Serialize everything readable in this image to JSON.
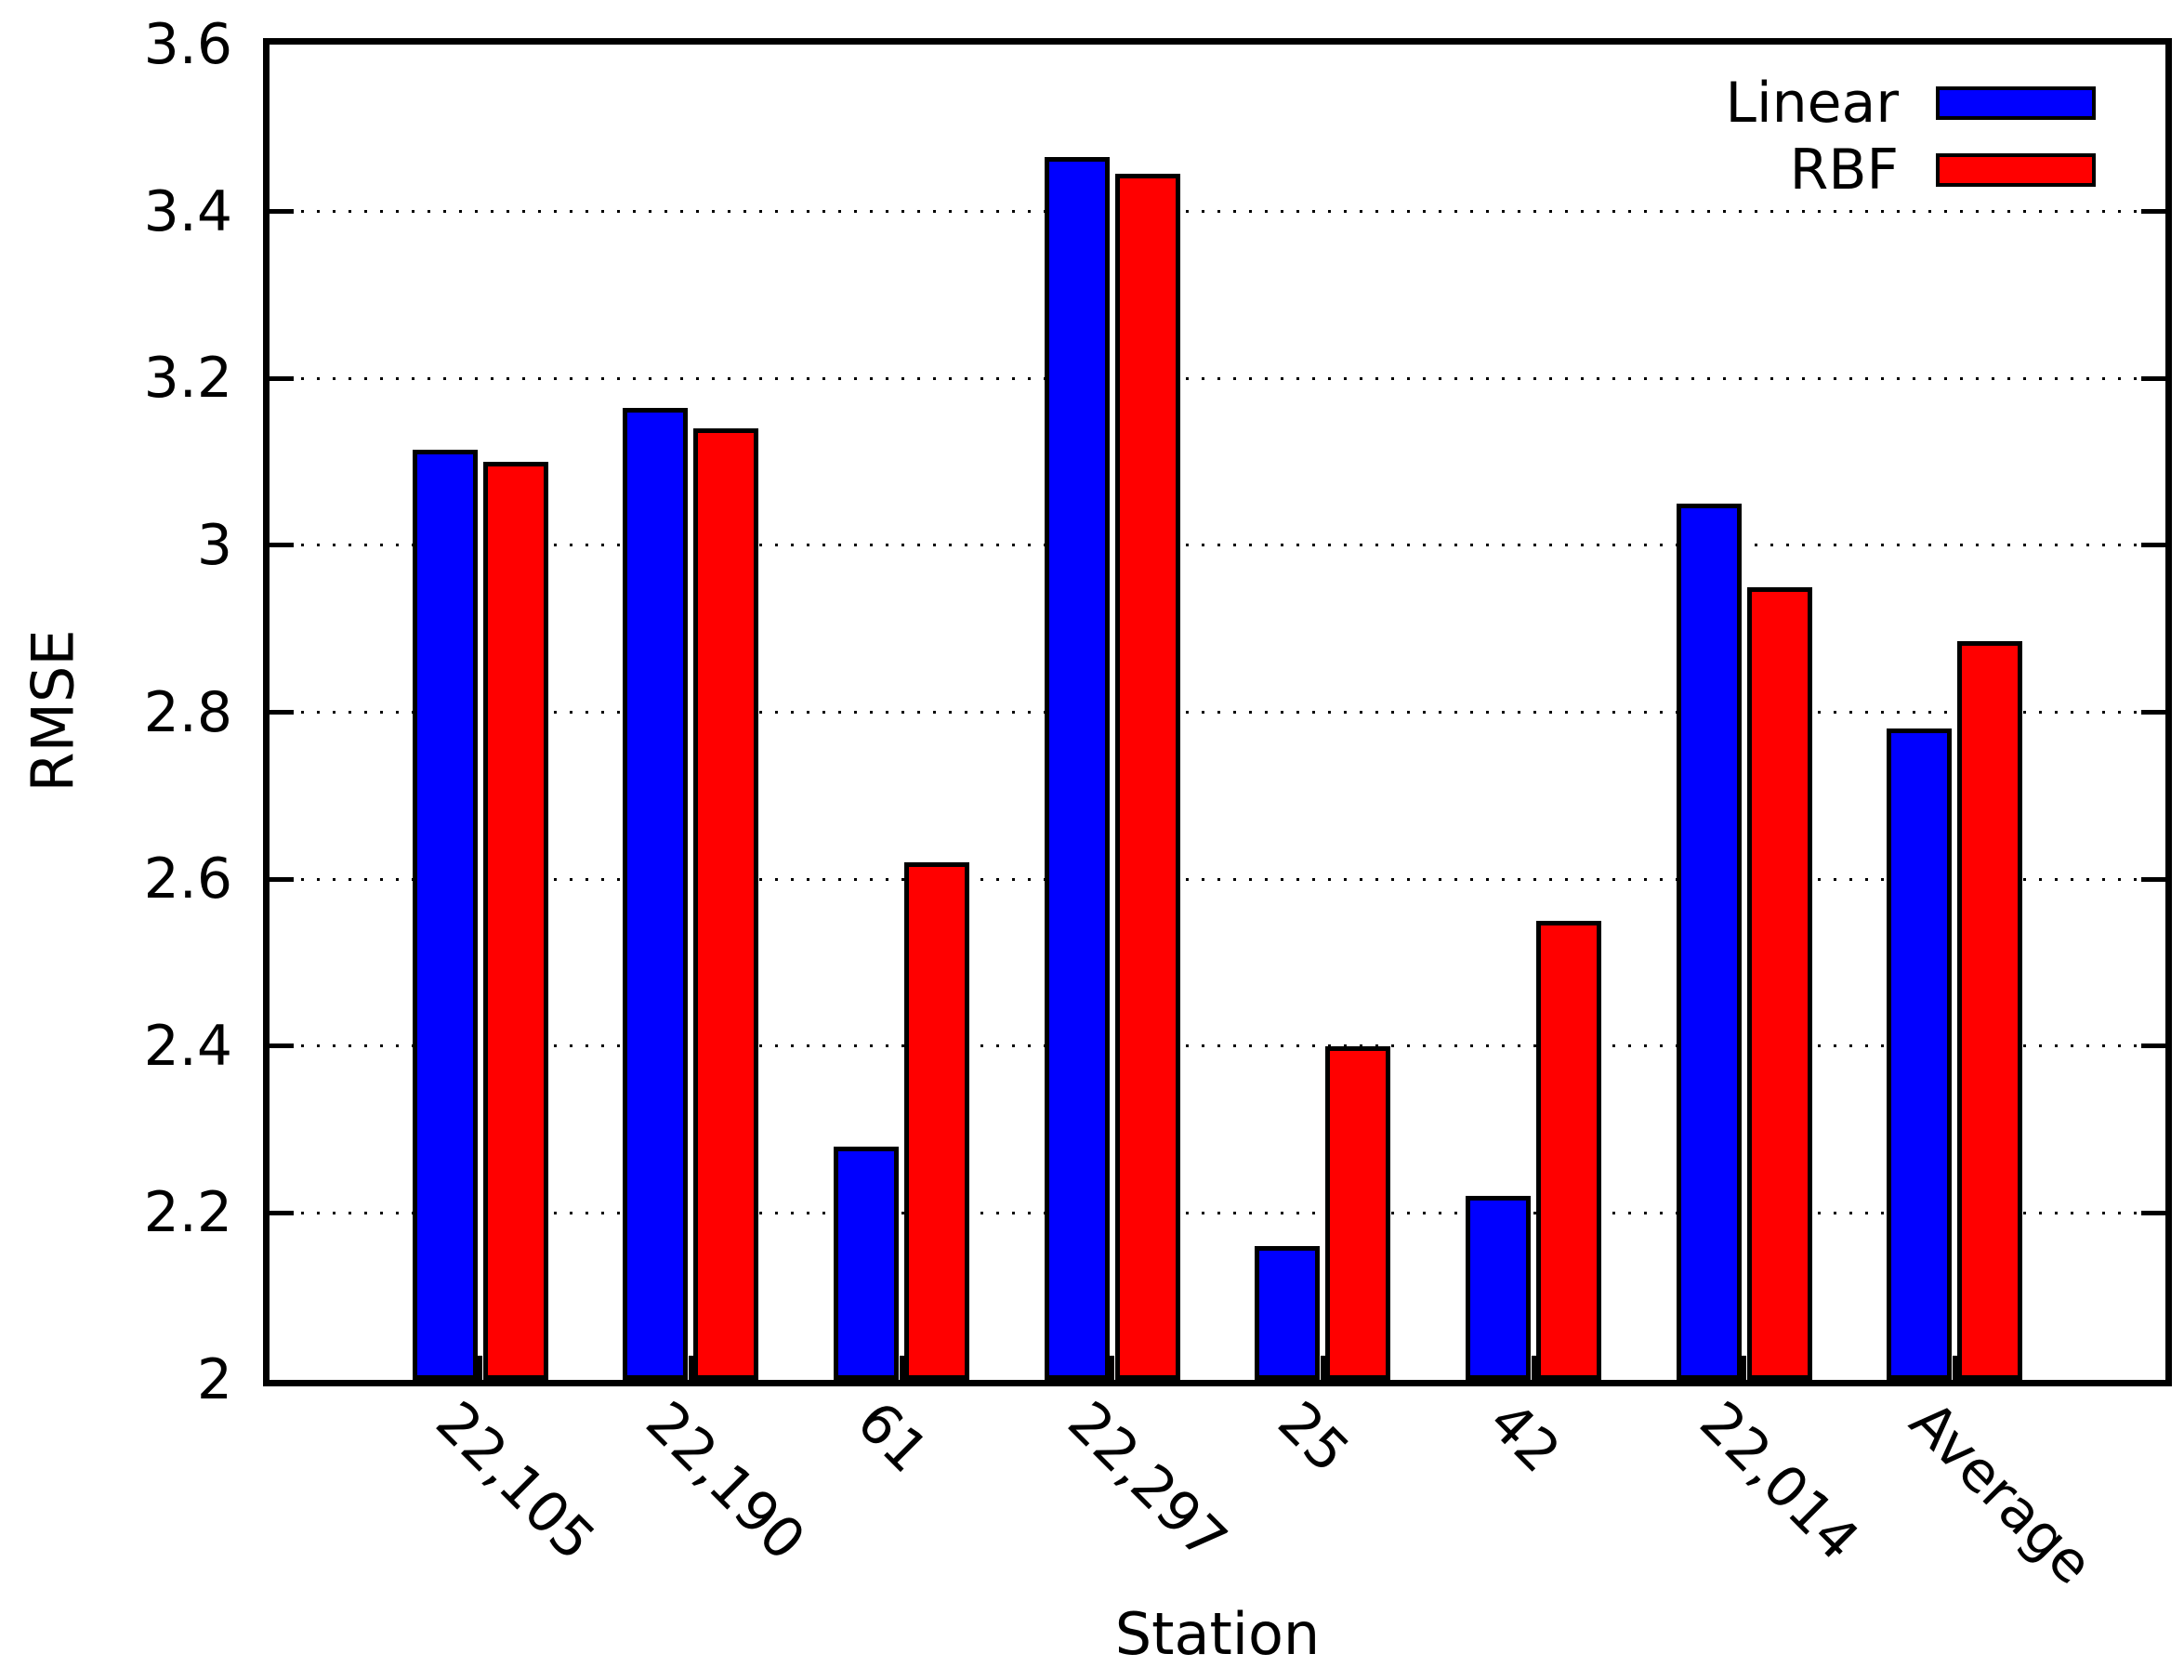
{
  "chart_data": {
    "type": "bar",
    "title": "",
    "xlabel": "Station",
    "ylabel": "RMSE",
    "categories": [
      "22,105",
      "22,190",
      "61",
      "22,297",
      "25",
      "42",
      "22,014",
      "Average"
    ],
    "series": [
      {
        "name": "Linear",
        "color": "#0000ff",
        "values": [
          3.115,
          3.165,
          2.28,
          3.465,
          2.16,
          2.22,
          3.05,
          2.78
        ]
      },
      {
        "name": "RBF",
        "color": "#ff0000",
        "values": [
          3.1,
          3.14,
          2.62,
          3.445,
          2.4,
          2.55,
          2.95,
          2.885
        ]
      }
    ],
    "ylim": [
      2,
      3.6
    ],
    "ytick_step": 0.2,
    "ytick_labels": [
      "2",
      "2.2",
      "2.4",
      "2.6",
      "2.8",
      "3",
      "3.2",
      "3.4",
      "3.6"
    ],
    "grid": "dotted-horizontal",
    "legend_position": "top-right",
    "bar_outline_color": "#000000",
    "x_tick_label_rotation_deg": 45
  }
}
